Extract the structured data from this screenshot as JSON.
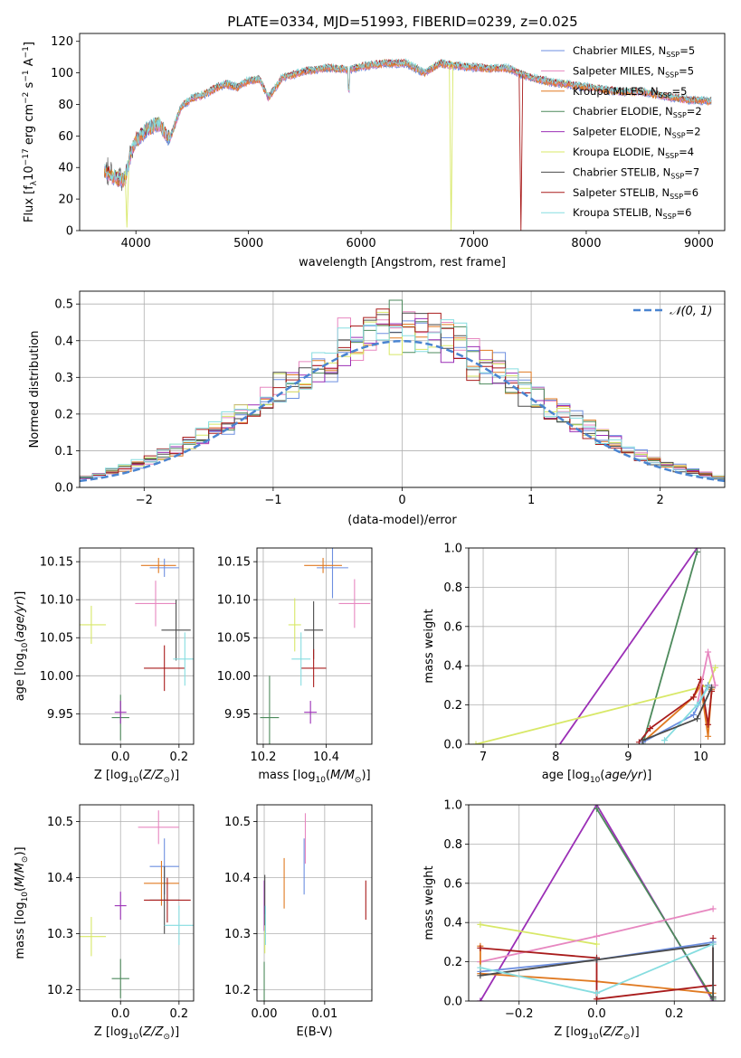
{
  "title": "PLATE=0334, MJD=51993, FIBERID=0239, z=0.025",
  "colors": {
    "c0": "#6d8fe0",
    "c1": "#e787c0",
    "c2": "#e07a22",
    "c3": "#4d8a5c",
    "c4": "#9b2fb6",
    "c5": "#d8e867",
    "c6": "#4a4a4a",
    "c7": "#a91c1c",
    "c8": "#86dde0",
    "gauss": "#4a84d0"
  },
  "legend_labels": [
    "Chabrier MILES, N",
    "Salpeter MILES, N",
    "Kroupa MILES, N",
    "Chabrier ELODIE, N",
    "Salpeter ELODIE, N",
    "Kroupa ELODIE, N",
    "Chabrier STELIB, N",
    "Salpeter STELIB, N",
    "Kroupa STELIB, N"
  ],
  "legend_sub": "SSP",
  "gauss_label": "N(0, 1)",
  "chart_data": [
    {
      "id": "spectrum",
      "type": "line",
      "xlabel": "wavelength [Angstrom, rest frame]",
      "ylabel": "Flux [f",
      "xlim": [
        3500,
        9230
      ],
      "ylim": [
        0,
        125
      ],
      "xticks": [
        4000,
        5000,
        6000,
        7000,
        8000,
        9000
      ],
      "yticks": [
        0,
        20,
        40,
        60,
        80,
        100,
        120
      ],
      "grid": false,
      "series": [
        {
          "name": "Chabrier MILES",
          "nssp": 5
        },
        {
          "name": "Salpeter MILES",
          "nssp": 5
        },
        {
          "name": "Kroupa MILES",
          "nssp": 5
        },
        {
          "name": "Chabrier ELODIE",
          "nssp": 2
        },
        {
          "name": "Salpeter ELODIE",
          "nssp": 2
        },
        {
          "name": "Kroupa ELODIE",
          "nssp": 4
        },
        {
          "name": "Chabrier STELIB",
          "nssp": 7
        },
        {
          "name": "Salpeter STELIB",
          "nssp": 6
        },
        {
          "name": "Kroupa STELIB",
          "nssp": 6
        }
      ],
      "continuum": [
        [
          3720,
          38
        ],
        [
          3800,
          34
        ],
        [
          3900,
          32
        ],
        [
          3960,
          50
        ],
        [
          4000,
          57
        ],
        [
          4100,
          64
        ],
        [
          4200,
          68
        ],
        [
          4300,
          58
        ],
        [
          4400,
          78
        ],
        [
          4500,
          84
        ],
        [
          4600,
          86
        ],
        [
          4700,
          90
        ],
        [
          4800,
          93
        ],
        [
          4900,
          91
        ],
        [
          5000,
          95
        ],
        [
          5100,
          96
        ],
        [
          5175,
          84
        ],
        [
          5300,
          97
        ],
        [
          5500,
          101
        ],
        [
          5700,
          103
        ],
        [
          5900,
          102
        ],
        [
          6000,
          104
        ],
        [
          6200,
          106
        ],
        [
          6400,
          106
        ],
        [
          6563,
          100
        ],
        [
          6700,
          106
        ],
        [
          6900,
          104
        ],
        [
          7100,
          103
        ],
        [
          7300,
          103
        ],
        [
          7500,
          97
        ],
        [
          7700,
          94
        ],
        [
          7900,
          92
        ],
        [
          8100,
          90
        ],
        [
          8300,
          88
        ],
        [
          8500,
          88
        ],
        [
          8700,
          85
        ],
        [
          8900,
          83
        ],
        [
          9100,
          82
        ]
      ],
      "dips": [
        {
          "x": 6800,
          "to": 0,
          "series": 5
        },
        {
          "x": 7420,
          "to": 0,
          "series": 7
        },
        {
          "x": 3920,
          "to": 2,
          "series": 5
        }
      ]
    },
    {
      "id": "residuals",
      "type": "step",
      "xlabel": "(data-model)/error",
      "ylabel": "Normed distribution",
      "xlim": [
        -2.5,
        2.5
      ],
      "ylim": [
        0,
        0.535
      ],
      "xticks": [
        -2,
        -1,
        0,
        1,
        2
      ],
      "yticks": [
        0.0,
        0.1,
        0.2,
        0.3,
        0.4,
        0.5
      ],
      "grid": true,
      "legend": "top-right"
    },
    {
      "id": "age_vs_Z",
      "type": "errorbar",
      "xlabel": "Z [log",
      "ylabel": "age  [log",
      "xlim": [
        -0.14,
        0.25
      ],
      "ylim": [
        9.91,
        10.168
      ],
      "xticks": [
        0.0,
        0.2
      ],
      "yticks": [
        9.95,
        10.0,
        10.05,
        10.1,
        10.15
      ],
      "grid": true,
      "points": [
        {
          "s": 0,
          "x": 0.15,
          "y": 10.142,
          "xe": 0.05,
          "ye": 0.012
        },
        {
          "s": 1,
          "x": 0.12,
          "y": 10.095,
          "xe": 0.07,
          "ye": 0.03
        },
        {
          "s": 2,
          "x": 0.13,
          "y": 10.145,
          "xe": 0.06,
          "ye": 0.01
        },
        {
          "s": 3,
          "x": 0.0,
          "y": 9.945,
          "xe": 0.03,
          "ye": 0.03
        },
        {
          "s": 4,
          "x": 0.0,
          "y": 9.952,
          "xe": 0.02,
          "ye": 0.015
        },
        {
          "s": 5,
          "x": -0.1,
          "y": 10.067,
          "xe": 0.05,
          "ye": 0.025
        },
        {
          "s": 6,
          "x": 0.19,
          "y": 10.06,
          "xe": 0.05,
          "ye": 0.04
        },
        {
          "s": 7,
          "x": 0.15,
          "y": 10.01,
          "xe": 0.07,
          "ye": 0.03
        },
        {
          "s": 8,
          "x": 0.22,
          "y": 10.022,
          "xe": 0.04,
          "ye": 0.035
        }
      ]
    },
    {
      "id": "age_vs_mass",
      "type": "errorbar",
      "xlabel": "mass [log",
      "ylabel": "",
      "xlim": [
        10.18,
        10.545
      ],
      "ylim": [
        9.91,
        10.168
      ],
      "xticks": [
        10.2,
        10.4
      ],
      "yticks": [
        9.95,
        10.0,
        10.05,
        10.1,
        10.15
      ],
      "grid": true,
      "points": [
        {
          "s": 0,
          "x": 10.42,
          "y": 10.142,
          "xe": 0.05,
          "ye": 0.04
        },
        {
          "s": 1,
          "x": 10.49,
          "y": 10.095,
          "xe": 0.05,
          "ye": 0.032
        },
        {
          "s": 2,
          "x": 10.39,
          "y": 10.145,
          "xe": 0.06,
          "ye": 0.01
        },
        {
          "s": 3,
          "x": 10.22,
          "y": 9.945,
          "xe": 0.03,
          "ye": 0.055
        },
        {
          "s": 4,
          "x": 10.35,
          "y": 9.952,
          "xe": 0.02,
          "ye": 0.015
        },
        {
          "s": 5,
          "x": 10.3,
          "y": 10.067,
          "xe": 0.02,
          "ye": 0.035
        },
        {
          "s": 6,
          "x": 10.36,
          "y": 10.06,
          "xe": 0.03,
          "ye": 0.038
        },
        {
          "s": 7,
          "x": 10.36,
          "y": 10.01,
          "xe": 0.04,
          "ye": 0.025
        },
        {
          "s": 8,
          "x": 10.32,
          "y": 10.022,
          "xe": 0.03,
          "ye": 0.035
        }
      ]
    },
    {
      "id": "weight_vs_age",
      "type": "line",
      "xlabel": "age  [log",
      "ylabel": "mass weight",
      "xlim": [
        6.8,
        10.33
      ],
      "ylim": [
        0,
        1.0
      ],
      "xticks": [
        7,
        8,
        9,
        10
      ],
      "yticks": [
        0.0,
        0.2,
        0.4,
        0.6,
        0.8,
        1.0
      ],
      "grid": true,
      "series": [
        {
          "s": 4,
          "pts": [
            [
              7.3,
              -0.4
            ],
            [
              9.95,
              1.0
            ]
          ]
        },
        {
          "s": 3,
          "pts": [
            [
              9.2,
              0.0
            ],
            [
              9.95,
              0.98
            ]
          ]
        },
        {
          "s": 5,
          "pts": [
            [
              6.9,
              0.0
            ],
            [
              10.1,
              0.3
            ],
            [
              10.2,
              0.39
            ]
          ]
        },
        {
          "s": 2,
          "pts": [
            [
              9.2,
              0.01
            ],
            [
              9.9,
              0.24
            ],
            [
              10.0,
              0.3
            ],
            [
              10.1,
              0.04
            ],
            [
              10.15,
              0.28
            ]
          ]
        },
        {
          "s": 7,
          "pts": [
            [
              9.15,
              0.01
            ],
            [
              9.3,
              0.08
            ],
            [
              9.9,
              0.24
            ],
            [
              10.0,
              0.33
            ],
            [
              10.1,
              0.1
            ],
            [
              10.15,
              0.27
            ]
          ]
        },
        {
          "s": 1,
          "pts": [
            [
              9.95,
              0.2
            ],
            [
              10.1,
              0.47
            ],
            [
              10.2,
              0.3
            ]
          ]
        },
        {
          "s": 0,
          "pts": [
            [
              9.2,
              0.01
            ],
            [
              9.9,
              0.15
            ],
            [
              10.1,
              0.3
            ]
          ]
        },
        {
          "s": 8,
          "pts": [
            [
              9.5,
              0.02
            ],
            [
              9.95,
              0.2
            ],
            [
              10.1,
              0.29
            ]
          ]
        },
        {
          "s": 6,
          "pts": [
            [
              9.2,
              0.02
            ],
            [
              9.95,
              0.13
            ],
            [
              10.15,
              0.29
            ]
          ]
        }
      ]
    },
    {
      "id": "mass_vs_Z",
      "type": "errorbar",
      "xlabel": "Z [log",
      "ylabel": "mass [log",
      "xlim": [
        -0.14,
        0.25
      ],
      "ylim": [
        10.18,
        10.53
      ],
      "xticks": [
        0.0,
        0.2
      ],
      "yticks": [
        10.2,
        10.3,
        10.4,
        10.5
      ],
      "grid": true,
      "points": [
        {
          "s": 0,
          "x": 0.15,
          "y": 10.42,
          "xe": 0.05,
          "ye": 0.05
        },
        {
          "s": 1,
          "x": 0.13,
          "y": 10.49,
          "xe": 0.07,
          "ye": 0.03
        },
        {
          "s": 2,
          "x": 0.14,
          "y": 10.39,
          "xe": 0.06,
          "ye": 0.04
        },
        {
          "s": 3,
          "x": 0.0,
          "y": 10.22,
          "xe": 0.03,
          "ye": 0.035
        },
        {
          "s": 4,
          "x": 0.0,
          "y": 10.35,
          "xe": 0.02,
          "ye": 0.025
        },
        {
          "s": 5,
          "x": -0.1,
          "y": 10.295,
          "xe": 0.05,
          "ye": 0.035
        },
        {
          "s": 6,
          "x": 0.15,
          "y": 10.36,
          "xe": 0.05,
          "ye": 0.06
        },
        {
          "s": 7,
          "x": 0.16,
          "y": 10.36,
          "xe": 0.08,
          "ye": 0.04
        },
        {
          "s": 8,
          "x": 0.2,
          "y": 10.315,
          "xe": 0.05,
          "ye": 0.035
        }
      ]
    },
    {
      "id": "mass_vs_ebv",
      "type": "errorbar",
      "xlabel": "E(B-V)",
      "ylabel": "",
      "xlim": [
        -0.0012,
        0.0178
      ],
      "ylim": [
        10.18,
        10.53
      ],
      "xticks": [
        0.0,
        0.01
      ],
      "yticks": [
        10.2,
        10.3,
        10.4,
        10.5
      ],
      "grid": true,
      "points": [
        {
          "s": 0,
          "x": 0.0066,
          "y": 10.42,
          "xe": 0,
          "ye": 0.05
        },
        {
          "s": 1,
          "x": 0.0068,
          "y": 10.47,
          "xe": 0,
          "ye": 0.045
        },
        {
          "s": 2,
          "x": 0.0033,
          "y": 10.39,
          "xe": 0,
          "ye": 0.045
        },
        {
          "s": 3,
          "x": 0.0,
          "y": 10.21,
          "xe": 0,
          "ye": 0.04
        },
        {
          "s": 4,
          "x": 0.0,
          "y": 10.35,
          "xe": 0,
          "ye": 0.045
        },
        {
          "s": 5,
          "x": 0.0001,
          "y": 10.3,
          "xe": 0,
          "ye": 0.035
        },
        {
          "s": 6,
          "x": 0.0001,
          "y": 10.36,
          "xe": 0,
          "ye": 0.045
        },
        {
          "s": 7,
          "x": 0.0168,
          "y": 10.36,
          "xe": 0,
          "ye": 0.035
        },
        {
          "s": 8,
          "x": 0.0002,
          "y": 10.315,
          "xe": 0,
          "ye": 0.035
        }
      ]
    },
    {
      "id": "weight_vs_Z",
      "type": "line",
      "xlabel": "Z [log",
      "ylabel": "mass weight",
      "xlim": [
        -0.33,
        0.33
      ],
      "ylim": [
        0,
        1.0
      ],
      "xticks": [
        -0.2,
        0.0,
        0.2
      ],
      "yticks": [
        0.0,
        0.2,
        0.4,
        0.6,
        0.8,
        1.0
      ],
      "grid": true,
      "series": [
        {
          "s": 4,
          "pts": [
            [
              -0.3,
              0.0
            ],
            [
              0.0,
              1.0
            ],
            [
              0.3,
              0.0
            ]
          ]
        },
        {
          "s": 3,
          "pts": [
            [
              0.0,
              0.98
            ],
            [
              0.3,
              0.01
            ]
          ]
        },
        {
          "s": 5,
          "pts": [
            [
              -0.3,
              0.39
            ],
            [
              0.0,
              0.29
            ]
          ]
        },
        {
          "s": 1,
          "pts": [
            [
              -0.3,
              0.2
            ],
            [
              0.0,
              0.33
            ],
            [
              0.3,
              0.47
            ]
          ]
        },
        {
          "s": 2,
          "pts": [
            [
              -0.3,
              0.28
            ],
            [
              -0.3,
              0.14
            ],
            [
              0.0,
              0.1
            ],
            [
              0.3,
              0.04
            ]
          ]
        },
        {
          "s": 7,
          "pts": [
            [
              -0.3,
              0.27
            ],
            [
              0.0,
              0.22
            ],
            [
              0.0,
              0.01
            ],
            [
              0.3,
              0.08
            ],
            [
              0.3,
              0.32
            ]
          ]
        },
        {
          "s": 0,
          "pts": [
            [
              -0.3,
              0.15
            ],
            [
              0.0,
              0.21
            ],
            [
              0.3,
              0.3
            ]
          ]
        },
        {
          "s": 6,
          "pts": [
            [
              -0.3,
              0.13
            ],
            [
              0.0,
              0.21
            ],
            [
              0.3,
              0.29
            ],
            [
              0.3,
              0.02
            ]
          ]
        },
        {
          "s": 8,
          "pts": [
            [
              -0.3,
              0.17
            ],
            [
              0.0,
              0.04
            ],
            [
              0.3,
              0.29
            ]
          ]
        }
      ]
    }
  ]
}
